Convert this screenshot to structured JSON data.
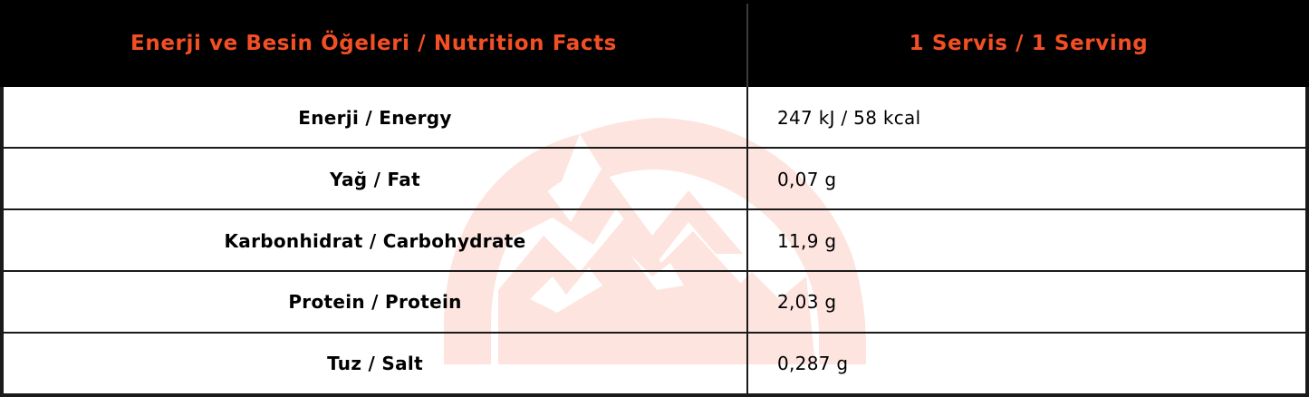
{
  "header": {
    "col_label": "Enerji ve Besin Öğeleri / Nutrition Facts",
    "col_value": "1 Servis / 1 Serving"
  },
  "rows": [
    {
      "label": "Enerji / Energy",
      "value": "247 kJ / 58 kcal"
    },
    {
      "label": "Yağ / Fat",
      "value": "0,07 g"
    },
    {
      "label": "Karbonhidrat / Carbohydrate",
      "value": "11,9 g"
    },
    {
      "label": "Protein / Protein",
      "value": "2,03 g"
    },
    {
      "label": "Tuz / Salt",
      "value": "0,287 g"
    }
  ],
  "colors": {
    "header_bg": "#000000",
    "header_text": "#f24f25",
    "watermark": "#fde4de",
    "border": "#1a1a1a"
  },
  "watermark_icon": "mountain-arch-logo"
}
